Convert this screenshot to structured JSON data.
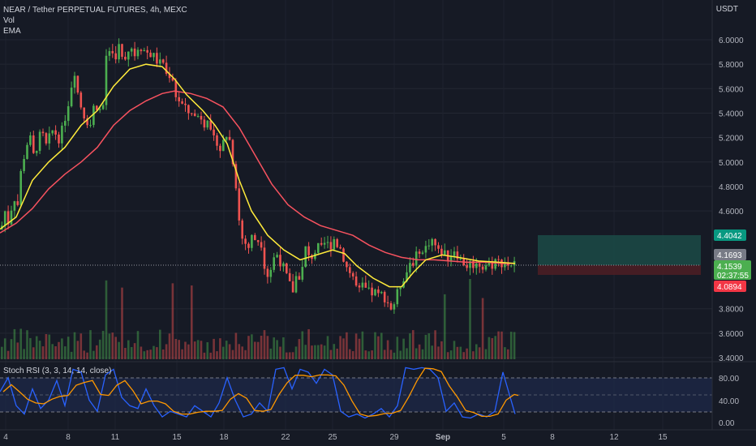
{
  "header": {
    "title": "NEAR / Tether PERPETUAL FUTURES, 4h, MEXC",
    "vol_label": "Vol",
    "ema_label": "EMA",
    "currency": "USDT"
  },
  "rsi": {
    "label": "Stoch RSI (3, 3, 14, 14, close)",
    "ticks": [
      "80.00",
      "40.00",
      "0.00"
    ]
  },
  "price_axis": {
    "ticks": [
      "6.0000",
      "5.8000",
      "5.6000",
      "5.4000",
      "5.2000",
      "5.0000",
      "4.8000",
      "4.6000",
      "3.8000",
      "3.6000",
      "3.4000"
    ]
  },
  "badges": {
    "target": "4.4042",
    "entry": "4.1693",
    "last": "4.1539",
    "countdown": "02:37:55",
    "stop": "4.0894"
  },
  "time_axis": [
    "4",
    "8",
    "11",
    "15",
    "18",
    "22",
    "25",
    "29",
    "Sep",
    "5",
    "8",
    "12",
    "15"
  ],
  "colors": {
    "up": "#26a69a",
    "up_bright": "#4caf50",
    "down": "#ef5350",
    "ema_fast": "#ffeb3b",
    "ema_slow": "#f7525f",
    "rsi_k": "#2962ff",
    "rsi_d": "#ff9800",
    "target_zone": "#1b4b47",
    "stop_zone": "#4a1e25"
  },
  "chart_data": {
    "type": "candlestick",
    "symbol": "NEAR / Tether PERPETUAL FUTURES",
    "interval": "4h",
    "exchange": "MEXC",
    "ylim": [
      3.4,
      6.1
    ],
    "price_path": [
      [
        0,
        4.45
      ],
      [
        5,
        4.6
      ],
      [
        10,
        4.48
      ],
      [
        15,
        4.75
      ],
      [
        20,
        4.62
      ],
      [
        25,
        4.95
      ],
      [
        30,
        5.1
      ],
      [
        35,
        5.22
      ],
      [
        40,
        5.05
      ],
      [
        45,
        5.15
      ],
      [
        50,
        5.25
      ],
      [
        55,
        5.12
      ],
      [
        60,
        5.2
      ],
      [
        65,
        5.28
      ],
      [
        70,
        5.18
      ],
      [
        75,
        5.25
      ],
      [
        80,
        5.4
      ],
      [
        85,
        5.55
      ],
      [
        90,
        5.78
      ],
      [
        95,
        5.55
      ],
      [
        100,
        5.42
      ],
      [
        105,
        5.35
      ],
      [
        110,
        5.3
      ],
      [
        115,
        5.48
      ],
      [
        120,
        5.45
      ],
      [
        125,
        5.38
      ],
      [
        130,
        5.9
      ],
      [
        135,
        5.92
      ],
      [
        140,
        5.85
      ],
      [
        145,
        5.95
      ],
      [
        150,
        5.82
      ],
      [
        155,
        5.9
      ],
      [
        160,
        5.95
      ],
      [
        165,
        5.88
      ],
      [
        170,
        5.97
      ],
      [
        175,
        5.92
      ],
      [
        180,
        5.9
      ],
      [
        185,
        5.88
      ],
      [
        190,
        5.85
      ],
      [
        195,
        5.8
      ],
      [
        200,
        5.82
      ],
      [
        205,
        5.68
      ],
      [
        210,
        5.75
      ],
      [
        215,
        5.55
      ],
      [
        220,
        5.5
      ],
      [
        225,
        5.45
      ],
      [
        230,
        5.4
      ],
      [
        235,
        5.42
      ],
      [
        240,
        5.35
      ],
      [
        245,
        5.4
      ],
      [
        250,
        5.32
      ],
      [
        255,
        5.38
      ],
      [
        260,
        5.15
      ],
      [
        265,
        5.2
      ],
      [
        270,
        5.1
      ],
      [
        275,
        5.18
      ],
      [
        280,
        5.25
      ],
      [
        285,
        5.05
      ],
      [
        290,
        4.8
      ],
      [
        295,
        4.4
      ],
      [
        300,
        4.35
      ],
      [
        305,
        4.3
      ],
      [
        310,
        4.4
      ],
      [
        315,
        4.35
      ],
      [
        320,
        4.38
      ],
      [
        325,
        4.15
      ],
      [
        330,
        4.05
      ],
      [
        335,
        4.2
      ],
      [
        340,
        4.25
      ],
      [
        345,
        4.18
      ],
      [
        350,
        4.1
      ],
      [
        355,
        4.0
      ],
      [
        360,
        3.95
      ],
      [
        365,
        4.1
      ],
      [
        370,
        4.05
      ],
      [
        375,
        4.3
      ],
      [
        380,
        4.2
      ],
      [
        385,
        4.25
      ],
      [
        390,
        4.3
      ],
      [
        395,
        4.28
      ],
      [
        400,
        4.35
      ],
      [
        405,
        4.3
      ],
      [
        410,
        4.38
      ],
      [
        415,
        4.32
      ],
      [
        420,
        4.28
      ],
      [
        425,
        4.15
      ],
      [
        430,
        4.1
      ],
      [
        435,
        4.05
      ],
      [
        440,
        3.92
      ],
      [
        445,
        3.98
      ],
      [
        450,
        3.95
      ],
      [
        455,
        3.92
      ],
      [
        460,
        3.94
      ],
      [
        465,
        3.9
      ],
      [
        470,
        3.92
      ],
      [
        475,
        3.88
      ],
      [
        480,
        3.8
      ],
      [
        485,
        3.85
      ],
      [
        490,
        3.95
      ],
      [
        495,
        4.05
      ],
      [
        500,
        4.1
      ],
      [
        505,
        4.2
      ],
      [
        510,
        4.18
      ],
      [
        515,
        4.3
      ],
      [
        520,
        4.25
      ],
      [
        525,
        4.32
      ],
      [
        530,
        4.38
      ],
      [
        535,
        4.32
      ],
      [
        540,
        4.25
      ],
      [
        545,
        4.28
      ],
      [
        550,
        4.22
      ],
      [
        555,
        4.25
      ],
      [
        560,
        4.3
      ],
      [
        565,
        4.2
      ],
      [
        570,
        4.18
      ],
      [
        575,
        4.15
      ],
      [
        580,
        4.18
      ],
      [
        585,
        4.15
      ],
      [
        590,
        4.17
      ],
      [
        595,
        4.14
      ],
      [
        600,
        4.18
      ],
      [
        605,
        4.16
      ],
      [
        610,
        4.2
      ],
      [
        615,
        4.17
      ],
      [
        620,
        4.19
      ],
      [
        625,
        4.16
      ],
      [
        630,
        4.17
      ],
      [
        635,
        4.154
      ]
    ],
    "ema_fast_path": [
      [
        0,
        4.45
      ],
      [
        20,
        4.55
      ],
      [
        40,
        4.85
      ],
      [
        60,
        5.0
      ],
      [
        80,
        5.12
      ],
      [
        100,
        5.3
      ],
      [
        120,
        5.42
      ],
      [
        140,
        5.62
      ],
      [
        160,
        5.76
      ],
      [
        180,
        5.8
      ],
      [
        200,
        5.78
      ],
      [
        215,
        5.68
      ],
      [
        230,
        5.55
      ],
      [
        250,
        5.42
      ],
      [
        265,
        5.3
      ],
      [
        280,
        5.15
      ],
      [
        295,
        4.85
      ],
      [
        310,
        4.6
      ],
      [
        330,
        4.4
      ],
      [
        350,
        4.28
      ],
      [
        370,
        4.2
      ],
      [
        390,
        4.24
      ],
      [
        410,
        4.28
      ],
      [
        425,
        4.25
      ],
      [
        440,
        4.15
      ],
      [
        460,
        4.05
      ],
      [
        480,
        3.98
      ],
      [
        495,
        3.98
      ],
      [
        510,
        4.1
      ],
      [
        525,
        4.2
      ],
      [
        545,
        4.24
      ],
      [
        565,
        4.22
      ],
      [
        590,
        4.19
      ],
      [
        615,
        4.18
      ],
      [
        635,
        4.17
      ]
    ],
    "ema_slow_path": [
      [
        0,
        4.42
      ],
      [
        20,
        4.5
      ],
      [
        40,
        4.62
      ],
      [
        60,
        4.78
      ],
      [
        80,
        4.9
      ],
      [
        100,
        5.0
      ],
      [
        120,
        5.12
      ],
      [
        140,
        5.3
      ],
      [
        160,
        5.42
      ],
      [
        180,
        5.5
      ],
      [
        200,
        5.56
      ],
      [
        215,
        5.58
      ],
      [
        235,
        5.56
      ],
      [
        255,
        5.52
      ],
      [
        275,
        5.45
      ],
      [
        295,
        5.28
      ],
      [
        315,
        5.05
      ],
      [
        335,
        4.82
      ],
      [
        355,
        4.65
      ],
      [
        375,
        4.55
      ],
      [
        395,
        4.48
      ],
      [
        415,
        4.44
      ],
      [
        435,
        4.4
      ],
      [
        455,
        4.32
      ],
      [
        475,
        4.26
      ],
      [
        495,
        4.22
      ],
      [
        515,
        4.2
      ],
      [
        535,
        4.2
      ],
      [
        555,
        4.19
      ],
      [
        575,
        4.18
      ],
      [
        600,
        4.18
      ],
      [
        620,
        4.17
      ],
      [
        635,
        4.17
      ]
    ],
    "stoch_rsi_k": [
      [
        0,
        55
      ],
      [
        10,
        80
      ],
      [
        20,
        30
      ],
      [
        30,
        15
      ],
      [
        40,
        60
      ],
      [
        50,
        25
      ],
      [
        60,
        40
      ],
      [
        70,
        75
      ],
      [
        80,
        30
      ],
      [
        90,
        95
      ],
      [
        100,
        90
      ],
      [
        110,
        40
      ],
      [
        120,
        20
      ],
      [
        130,
        85
      ],
      [
        140,
        95
      ],
      [
        150,
        45
      ],
      [
        160,
        30
      ],
      [
        170,
        25
      ],
      [
        180,
        60
      ],
      [
        190,
        30
      ],
      [
        200,
        10
      ],
      [
        210,
        20
      ],
      [
        220,
        15
      ],
      [
        230,
        10
      ],
      [
        240,
        30
      ],
      [
        250,
        20
      ],
      [
        260,
        10
      ],
      [
        270,
        35
      ],
      [
        280,
        80
      ],
      [
        290,
        40
      ],
      [
        300,
        10
      ],
      [
        310,
        15
      ],
      [
        320,
        35
      ],
      [
        330,
        20
      ],
      [
        340,
        95
      ],
      [
        350,
        98
      ],
      [
        360,
        60
      ],
      [
        370,
        95
      ],
      [
        380,
        90
      ],
      [
        390,
        70
      ],
      [
        400,
        95
      ],
      [
        410,
        85
      ],
      [
        420,
        20
      ],
      [
        430,
        10
      ],
      [
        440,
        15
      ],
      [
        450,
        8
      ],
      [
        460,
        15
      ],
      [
        470,
        25
      ],
      [
        480,
        10
      ],
      [
        490,
        30
      ],
      [
        500,
        98
      ],
      [
        510,
        95
      ],
      [
        520,
        98
      ],
      [
        530,
        95
      ],
      [
        540,
        80
      ],
      [
        550,
        20
      ],
      [
        560,
        35
      ],
      [
        570,
        10
      ],
      [
        580,
        8
      ],
      [
        590,
        15
      ],
      [
        600,
        10
      ],
      [
        610,
        20
      ],
      [
        620,
        90
      ],
      [
        630,
        40
      ],
      [
        635,
        15
      ]
    ]
  }
}
